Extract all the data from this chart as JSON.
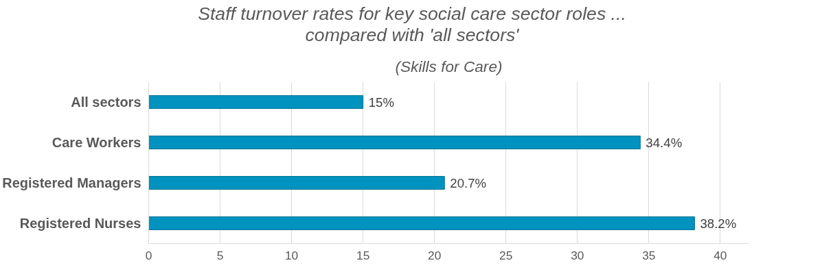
{
  "chart_data": {
    "type": "bar",
    "orientation": "horizontal",
    "title": "Staff turnover rates for key social care sector roles ... compared with 'all sectors'",
    "subtitle": "(Skills for Care)",
    "categories": [
      "All sectors",
      "Care Workers",
      "Registered Managers",
      "Registered Nurses"
    ],
    "values": [
      15,
      34.4,
      20.7,
      38.2
    ],
    "value_labels": [
      "15%",
      "34.4%",
      "20.7%",
      "38.2%"
    ],
    "color": "#0093bf",
    "xlim": [
      0,
      42
    ],
    "xticks": [
      0,
      5,
      10,
      15,
      20,
      25,
      30,
      35,
      40
    ],
    "grid": "x"
  }
}
